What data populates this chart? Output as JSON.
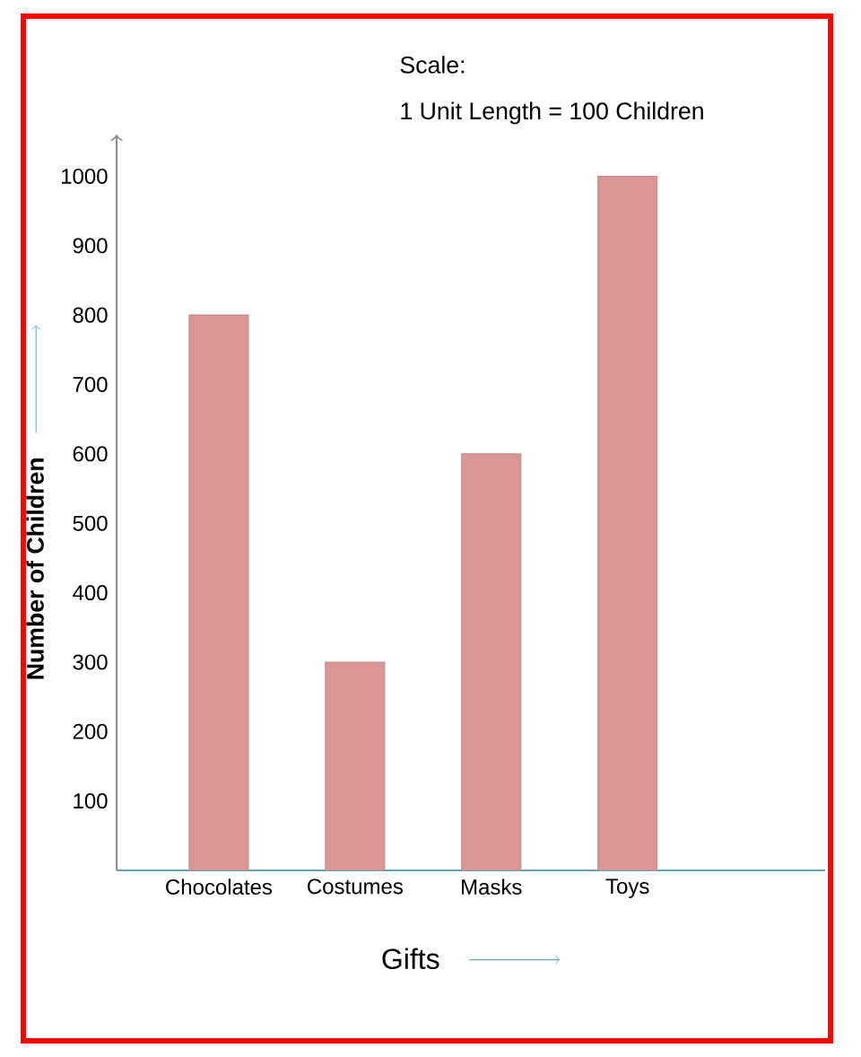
{
  "chart_data": {
    "type": "bar",
    "annotations": [
      "Scale:",
      "1 Unit Length = 100 Children"
    ],
    "xlabel": "Gifts",
    "ylabel": "Number of Children",
    "categories": [
      "Chocolates",
      "Costumes",
      "Masks",
      "Toys"
    ],
    "values": [
      800,
      300,
      600,
      1000
    ],
    "color": "#d99694",
    "ylim": [
      0,
      1060
    ],
    "yticks": [
      100,
      200,
      300,
      400,
      500,
      600,
      700,
      800,
      900,
      1000
    ],
    "grid": false
  }
}
